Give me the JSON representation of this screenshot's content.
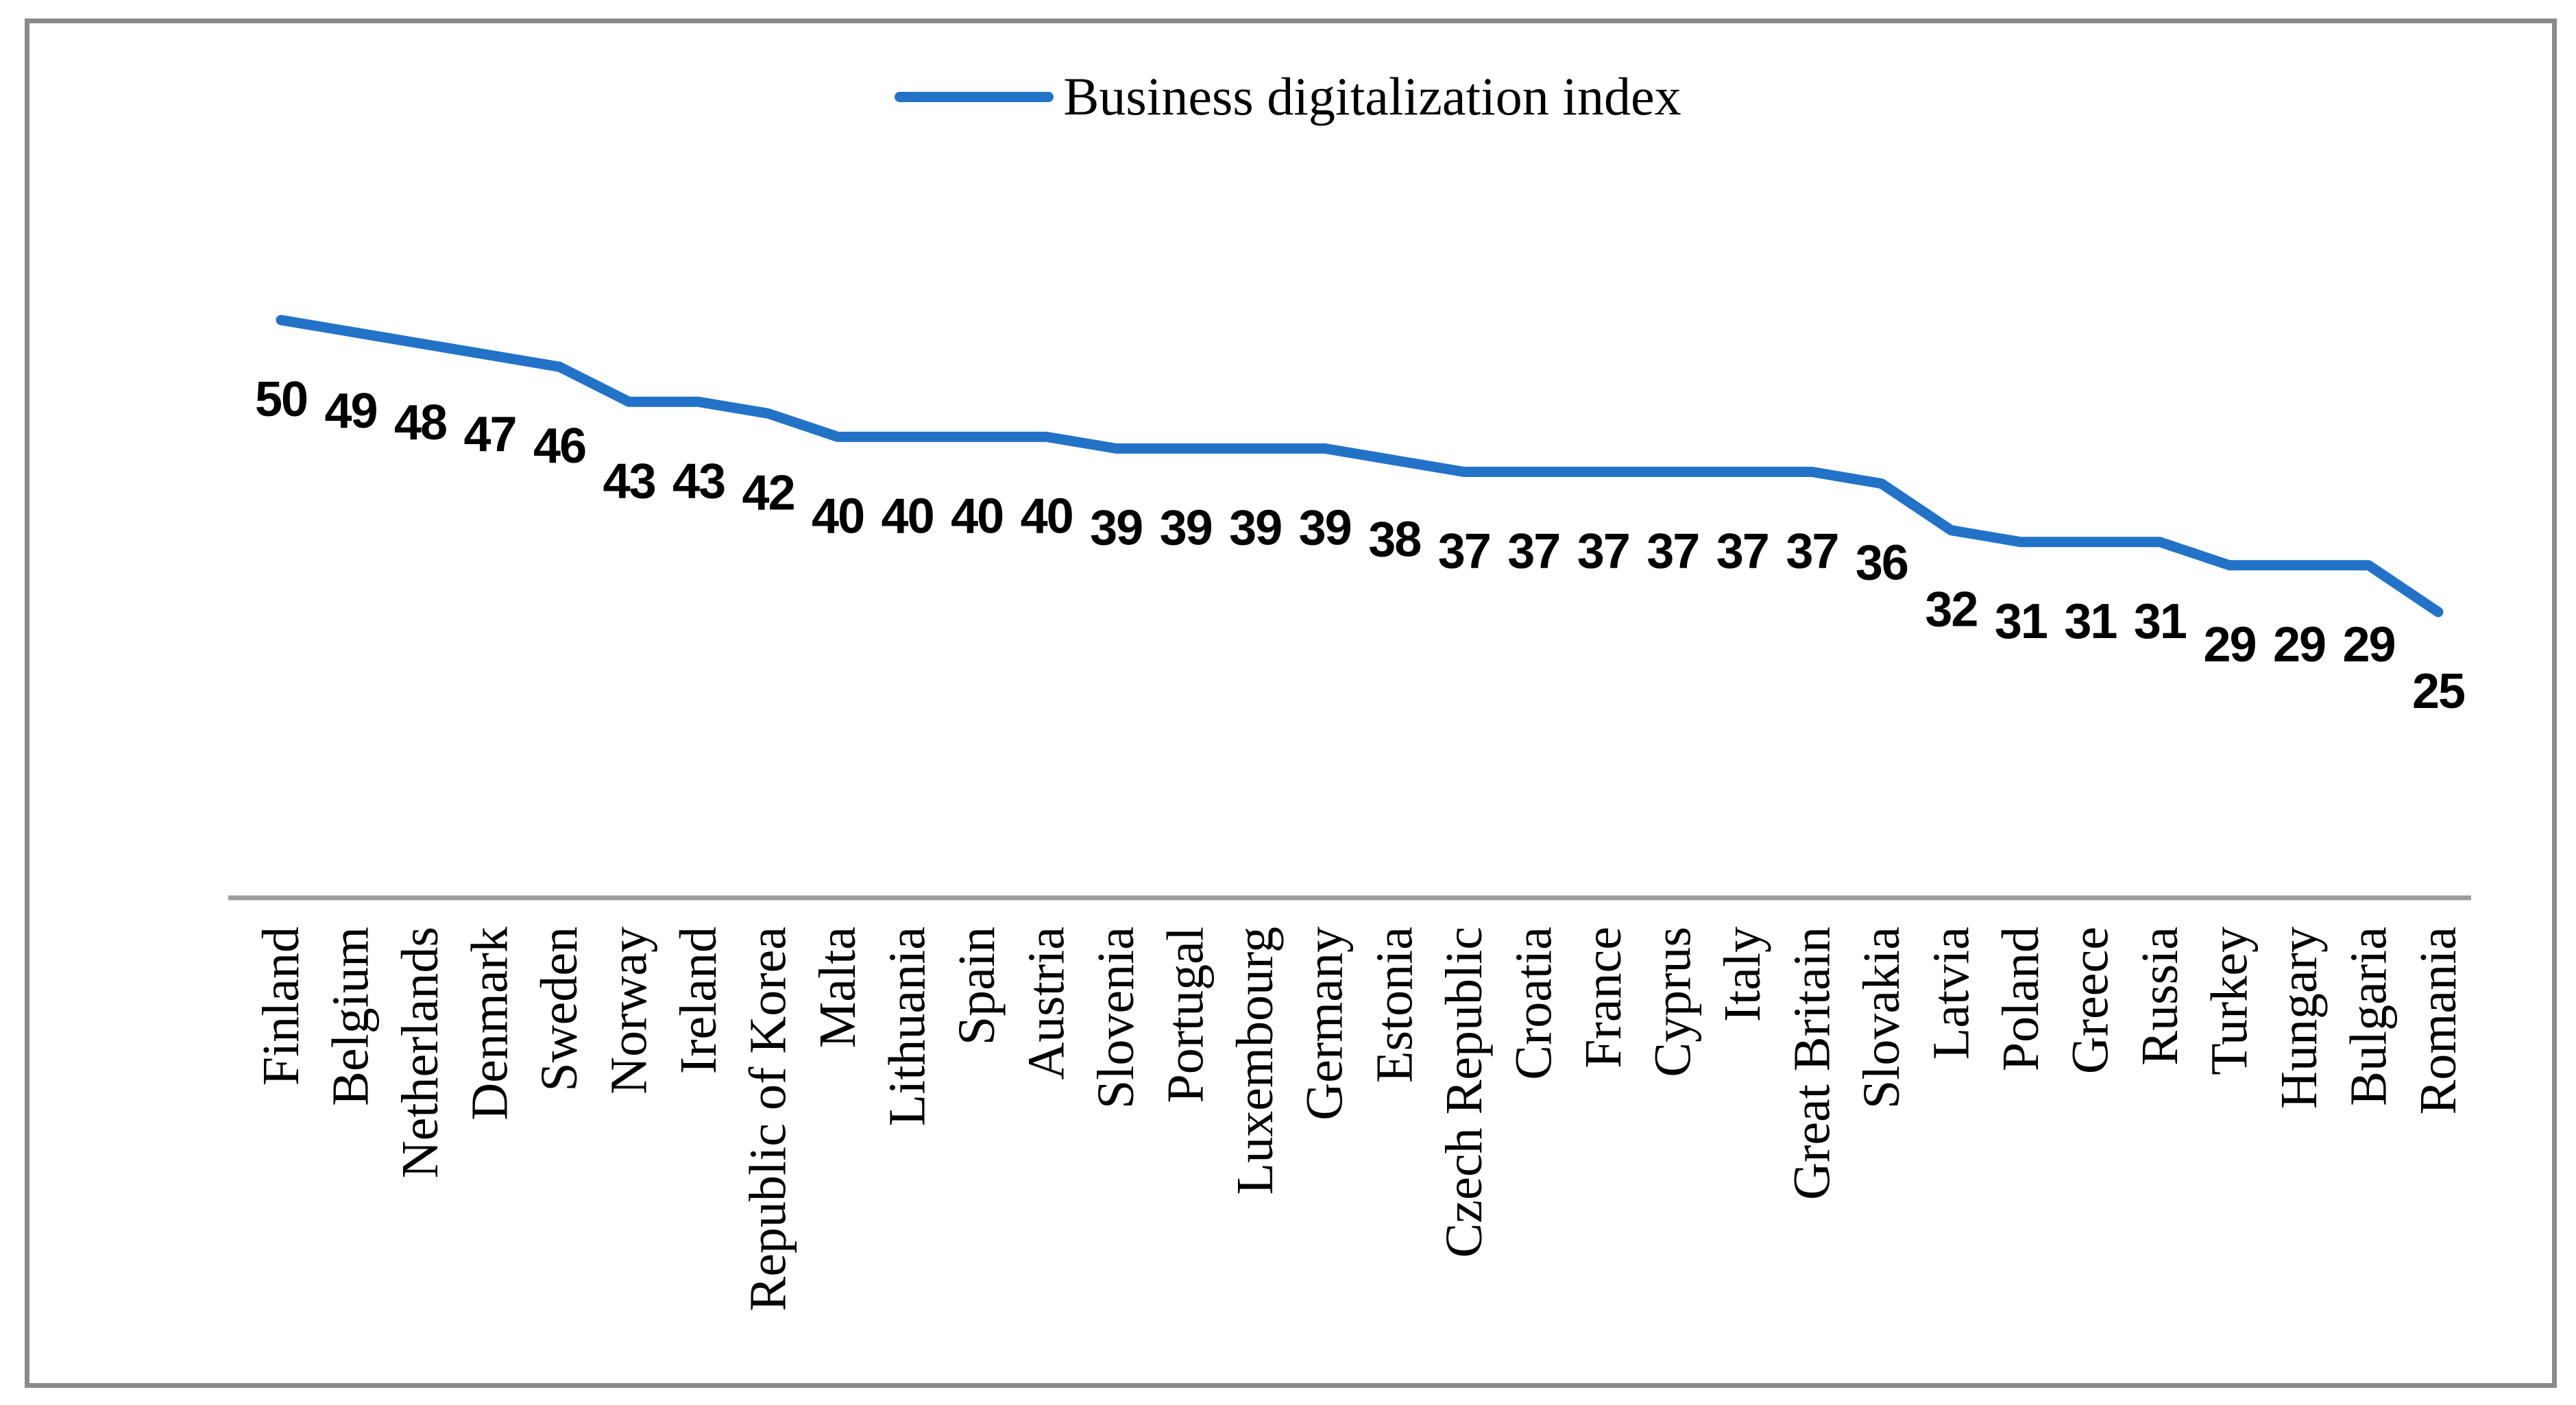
{
  "frame": {
    "border_color": "#8a8a8a",
    "background": "#ffffff"
  },
  "legend": {
    "label": "Business digitalization index",
    "line_color": "#2273c8",
    "position": "top-center"
  },
  "chart_data": {
    "type": "line",
    "title": "",
    "series_name": "Business digitalization index",
    "categories": [
      "Finland",
      "Belgium",
      "Netherlands",
      "Denmark",
      "Sweden",
      "Norway",
      "Ireland",
      "Republic of Korea",
      "Malta",
      "Lithuania",
      "Spain",
      "Austria",
      "Slovenia",
      "Portugal",
      "Luxembourg",
      "Germany",
      "Estonia",
      "Czech Republic",
      "Croatia",
      "France",
      "Cyprus",
      "Italy",
      "Great Britain",
      "Slovakia",
      "Latvia",
      "Poland",
      "Greece",
      "Russia",
      "Turkey",
      "Hungary",
      "Bulgaria",
      "Romania"
    ],
    "values": [
      50,
      49,
      48,
      47,
      46,
      43,
      43,
      42,
      40,
      40,
      40,
      40,
      39,
      39,
      39,
      39,
      38,
      37,
      37,
      37,
      37,
      37,
      37,
      36,
      32,
      31,
      31,
      31,
      29,
      29,
      29,
      25
    ],
    "data_labels_visible": true,
    "data_label_position": "below",
    "legend_position": "top",
    "x_axis_visible": true,
    "y_axis_visible": false,
    "gridlines": false,
    "value_range_shown": [
      25,
      50
    ],
    "line_color": "#2273c8",
    "axis_color": "#9c9c9c",
    "data_label_color": "#000000",
    "category_label_color": "#000000",
    "category_label_rotation_deg": -90
  }
}
